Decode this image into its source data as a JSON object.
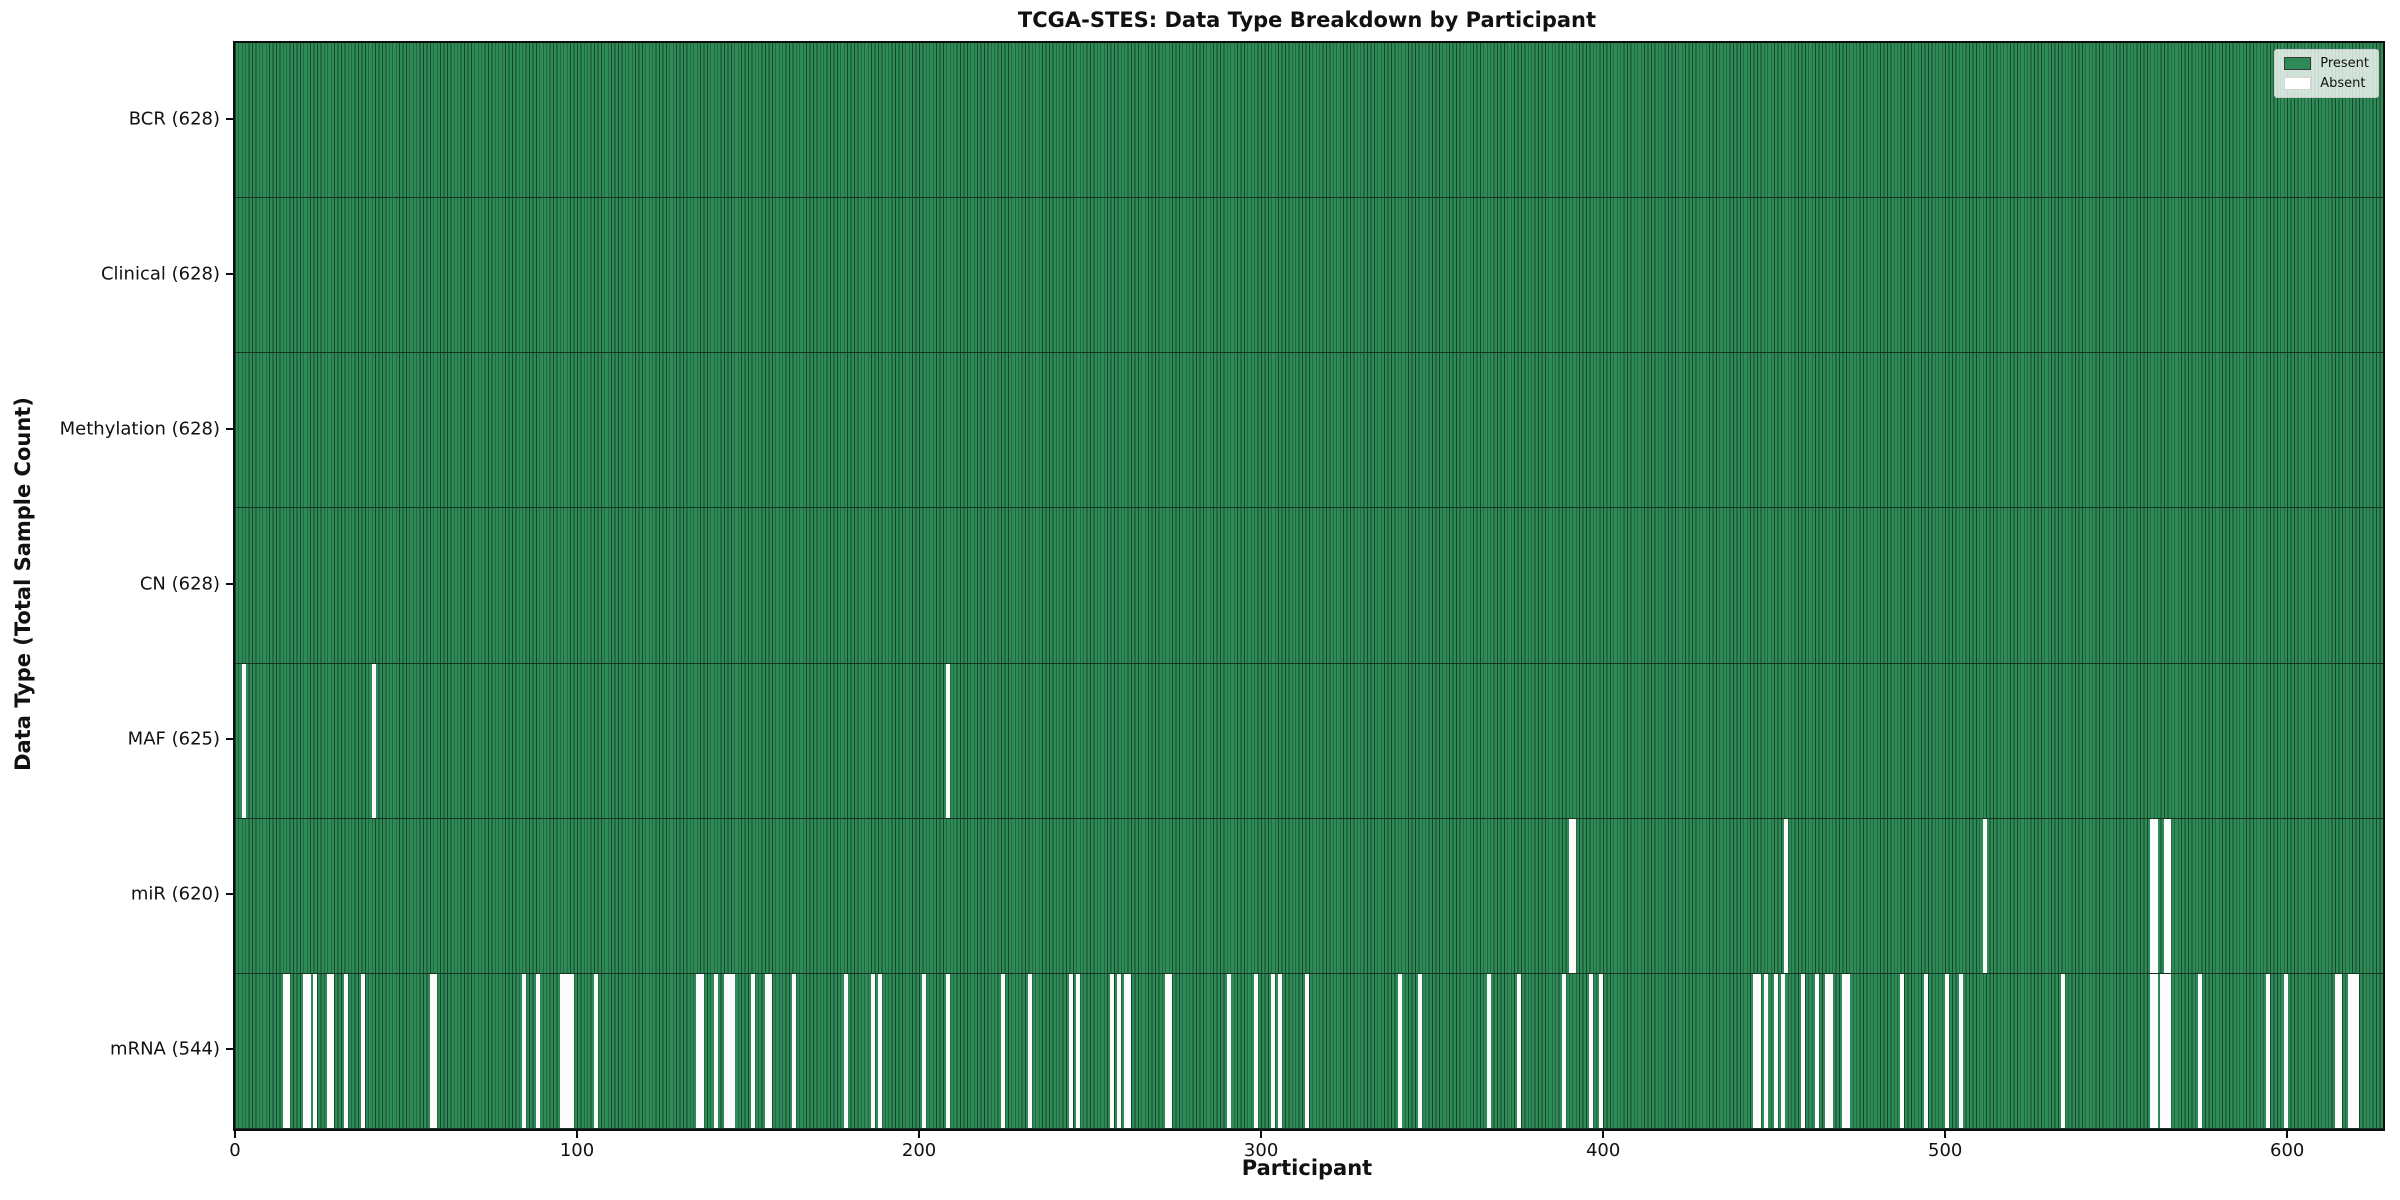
{
  "figure": {
    "background": "#ffffff",
    "present_color": "#2e8b57",
    "present_edge_color": "#17472b",
    "absent_color": "#fcfcfc",
    "axis_color": "#0d0d0d"
  },
  "chart_data": {
    "type": "heatmap",
    "title": "TCGA-STES: Data Type Breakdown by Participant",
    "xlabel": "Participant",
    "ylabel": "Data Type (Total Sample Count)",
    "x_ticks": [
      0,
      100,
      200,
      300,
      400,
      500,
      600
    ],
    "x_range": [
      0,
      628
    ],
    "n_participants": 628,
    "grid": false,
    "legend_position": "upper right",
    "legend": [
      {
        "label": "Present",
        "color": "#2e8b57"
      },
      {
        "label": "Absent",
        "color": "#ffffff"
      }
    ],
    "rows": [
      {
        "label": "BCR (628)",
        "data_type": "BCR",
        "present_count": 628,
        "absent": []
      },
      {
        "label": "Clinical (628)",
        "data_type": "Clinical",
        "present_count": 628,
        "absent": []
      },
      {
        "label": "Methylation (628)",
        "data_type": "Methylation",
        "present_count": 628,
        "absent": []
      },
      {
        "label": "CN (628)",
        "data_type": "CN",
        "present_count": 628,
        "absent": []
      },
      {
        "label": "MAF (625)",
        "data_type": "MAF",
        "present_count": 625,
        "absent": [
          2,
          40,
          208
        ]
      },
      {
        "label": "miR (620)",
        "data_type": "miR",
        "present_count": 620,
        "absent": [
          390,
          391,
          453,
          511,
          560,
          561,
          564,
          565
        ]
      },
      {
        "label": "mRNA (544)",
        "data_type": "mRNA",
        "present_count": 544,
        "absent": [
          14,
          15,
          20,
          21,
          23,
          27,
          28,
          32,
          37,
          57,
          58,
          84,
          88,
          95,
          96,
          97,
          98,
          105,
          135,
          136,
          140,
          143,
          144,
          145,
          151,
          155,
          156,
          163,
          178,
          186,
          188,
          201,
          208,
          224,
          232,
          244,
          246,
          256,
          258,
          260,
          261,
          272,
          273,
          290,
          298,
          303,
          305,
          313,
          340,
          346,
          366,
          375,
          388,
          396,
          399,
          444,
          445,
          447,
          450,
          452,
          458,
          462,
          465,
          466,
          470,
          471,
          487,
          494,
          500,
          504,
          534,
          560,
          561,
          563,
          564,
          565,
          574,
          594,
          599,
          614,
          615,
          618,
          619,
          620
        ]
      }
    ]
  }
}
